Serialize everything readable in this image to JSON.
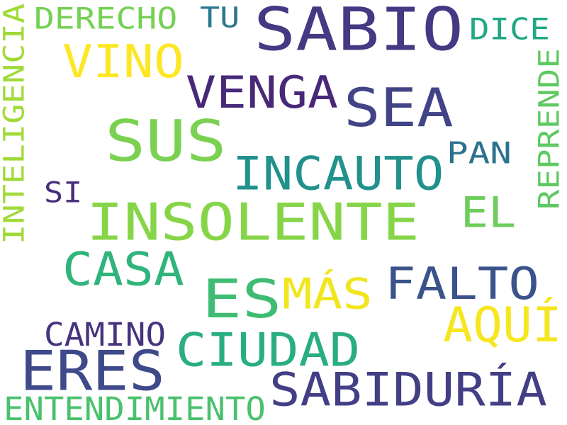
{
  "words": [
    {
      "text": "SABIO",
      "color": "#443983"
    },
    {
      "text": "DERECHO",
      "color": "#75d054"
    },
    {
      "text": "TU",
      "color": "#2a788e"
    },
    {
      "text": "DICE",
      "color": "#22a884"
    },
    {
      "text": "VINO",
      "color": "#fde725"
    },
    {
      "text": "VENGA",
      "color": "#482878"
    },
    {
      "text": "SEA",
      "color": "#414487"
    },
    {
      "text": "SUS",
      "color": "#7ad151"
    },
    {
      "text": "INCAUTO",
      "color": "#21918c"
    },
    {
      "text": "PAN",
      "color": "#2c728e"
    },
    {
      "text": "REPRENDE",
      "color": "#5ec962"
    },
    {
      "text": "INTELIGENCIA",
      "color": "#a0da39"
    },
    {
      "text": "SI",
      "color": "#472d7b"
    },
    {
      "text": "INSOLENTE",
      "color": "#86d549"
    },
    {
      "text": "EL",
      "color": "#6ccd5a"
    },
    {
      "text": "CASA",
      "color": "#2fb47c"
    },
    {
      "text": "ES",
      "color": "#3fbc73"
    },
    {
      "text": "MÁS",
      "color": "#f1e51d"
    },
    {
      "text": "FALTO",
      "color": "#3b528b"
    },
    {
      "text": "AQUÍ",
      "color": "#f6e620"
    },
    {
      "text": "CAMINO",
      "color": "#46337e"
    },
    {
      "text": "CIUDAD",
      "color": "#28ae80"
    },
    {
      "text": "ERES",
      "color": "#3e4a89"
    },
    {
      "text": "SABIDURÍA",
      "color": "#423f85"
    },
    {
      "text": "ENTENDIMIENTO",
      "color": "#4ac16d"
    }
  ]
}
